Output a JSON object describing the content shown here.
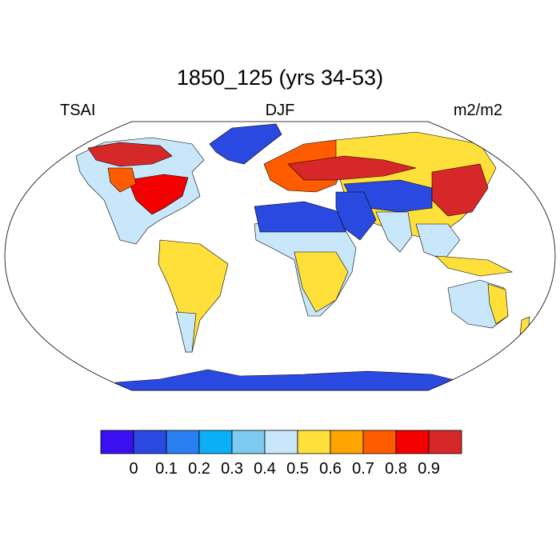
{
  "title": "1850_125 (yrs 34-53)",
  "label_left": "TSAI",
  "label_center": "DJF",
  "label_right": "m2/m2",
  "colorbar": {
    "colors": [
      "#3a10f0",
      "#2a49e0",
      "#2a7ff0",
      "#0aaff5",
      "#7ccaf0",
      "#c9e7fa",
      "#ffdf3a",
      "#ffa500",
      "#ff5c00",
      "#f50000",
      "#d62828"
    ],
    "tick_labels": [
      "0",
      "0.1",
      "0.2",
      "0.3",
      "0.4",
      "0.5",
      "0.6",
      "0.7",
      "0.8",
      "0.9"
    ]
  },
  "map": {
    "projection": "Robinson",
    "variable": "TSAI",
    "regions": [
      {
        "name": "greenland",
        "level": "0.1"
      },
      {
        "name": "antarctica",
        "level": "0.1"
      },
      {
        "name": "sahara",
        "level": "0.1"
      },
      {
        "name": "eastern-north-america",
        "level": "0.9"
      },
      {
        "name": "east-asia",
        "level": "0.9"
      },
      {
        "name": "amazon",
        "level": "0.5-0.6"
      },
      {
        "name": "central-africa",
        "level": "0.5-0.6"
      },
      {
        "name": "australia",
        "level": "0.4-0.5"
      }
    ]
  }
}
